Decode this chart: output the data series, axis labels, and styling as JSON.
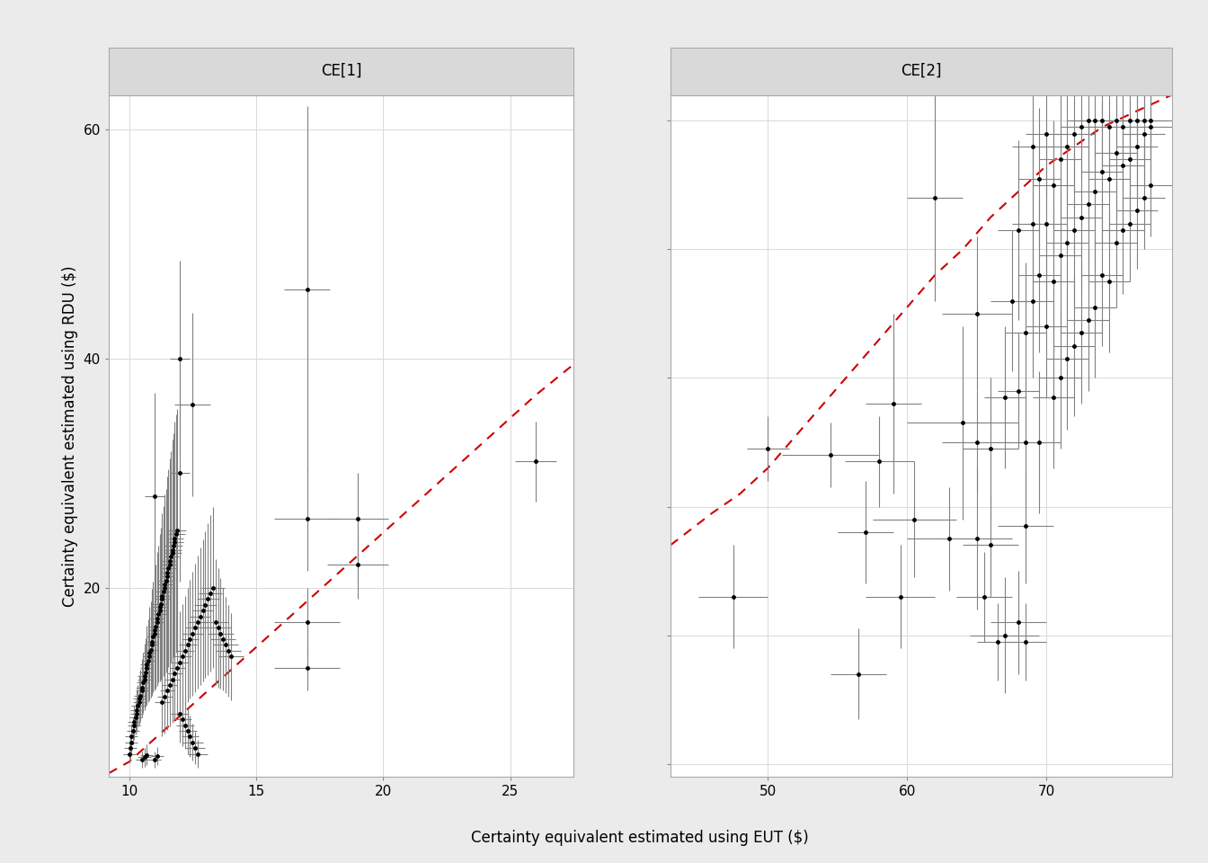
{
  "panel1_title": "CE[1]",
  "panel2_title": "CE[2]",
  "xlabel": "Certainty equivalent estimated using EUT ($)",
  "ylabel": "Certainty equivalent estimated using RDU ($)",
  "bg_color": "#ebebeb",
  "plot_bg_color": "#ffffff",
  "grid_color": "#d9d9d9",
  "strip_color": "#d9d9d9",
  "dot_color": "#000000",
  "errorbar_color": "#808080",
  "line_color": "#cc0000",
  "panel1_xlim": [
    9.2,
    27.5
  ],
  "panel1_ylim": [
    3.5,
    63
  ],
  "panel2_xlim": [
    43,
    79
  ],
  "panel2_ylim": [
    29,
    82
  ],
  "panel1_xticks": [
    10,
    15,
    20,
    25
  ],
  "panel1_yticks": [
    20,
    40,
    60
  ],
  "panel2_xticks": [
    50,
    60,
    70
  ],
  "panel2_yticks": [
    30,
    40,
    50,
    60,
    70,
    80
  ],
  "panel1_points": [
    [
      10.0,
      5.5,
      0.25,
      0.8
    ],
    [
      10.05,
      6.0,
      0.25,
      0.9
    ],
    [
      10.1,
      6.5,
      0.25,
      1.0
    ],
    [
      10.1,
      7.0,
      0.25,
      1.1
    ],
    [
      10.15,
      7.5,
      0.25,
      1.2
    ],
    [
      10.2,
      8.0,
      0.25,
      1.3
    ],
    [
      10.2,
      8.3,
      0.25,
      1.4
    ],
    [
      10.25,
      8.7,
      0.25,
      1.5
    ],
    [
      10.3,
      9.0,
      0.25,
      1.6
    ],
    [
      10.3,
      9.3,
      0.25,
      1.7
    ],
    [
      10.35,
      9.7,
      0.25,
      1.8
    ],
    [
      10.4,
      10.0,
      0.25,
      2.0
    ],
    [
      10.4,
      10.3,
      0.25,
      2.1
    ],
    [
      10.45,
      10.6,
      0.25,
      2.2
    ],
    [
      10.5,
      11.0,
      0.25,
      2.3
    ],
    [
      10.5,
      11.3,
      0.25,
      2.5
    ],
    [
      10.55,
      11.7,
      0.25,
      2.6
    ],
    [
      10.6,
      12.0,
      0.25,
      2.7
    ],
    [
      10.6,
      12.3,
      0.25,
      2.8
    ],
    [
      10.65,
      12.6,
      0.25,
      3.0
    ],
    [
      10.7,
      13.0,
      0.25,
      3.2
    ],
    [
      10.7,
      13.3,
      0.25,
      3.4
    ],
    [
      10.75,
      13.6,
      0.25,
      3.6
    ],
    [
      10.8,
      14.0,
      0.25,
      3.8
    ],
    [
      10.8,
      14.3,
      0.25,
      4.0
    ],
    [
      10.85,
      14.6,
      0.25,
      4.2
    ],
    [
      10.9,
      15.0,
      0.25,
      4.4
    ],
    [
      10.9,
      15.3,
      0.25,
      4.6
    ],
    [
      10.95,
      15.7,
      0.25,
      4.8
    ],
    [
      11.0,
      16.0,
      0.25,
      5.0
    ],
    [
      11.0,
      16.3,
      0.25,
      5.2
    ],
    [
      11.05,
      16.6,
      0.25,
      5.4
    ],
    [
      11.1,
      17.0,
      0.25,
      5.6
    ],
    [
      11.1,
      17.3,
      0.3,
      5.8
    ],
    [
      11.15,
      17.7,
      0.3,
      6.0
    ],
    [
      11.2,
      18.0,
      0.3,
      6.2
    ],
    [
      11.2,
      18.3,
      0.3,
      6.4
    ],
    [
      11.25,
      18.6,
      0.3,
      6.6
    ],
    [
      11.3,
      19.0,
      0.3,
      7.0
    ],
    [
      11.3,
      19.3,
      0.3,
      7.2
    ],
    [
      11.35,
      19.7,
      0.3,
      7.4
    ],
    [
      11.4,
      20.0,
      0.3,
      7.6
    ],
    [
      11.4,
      20.3,
      0.3,
      7.8
    ],
    [
      11.45,
      20.6,
      0.3,
      8.0
    ],
    [
      11.5,
      21.0,
      0.3,
      8.2
    ],
    [
      11.5,
      21.3,
      0.3,
      8.4
    ],
    [
      11.55,
      21.7,
      0.3,
      8.6
    ],
    [
      11.6,
      22.0,
      0.3,
      8.8
    ],
    [
      11.6,
      22.3,
      0.3,
      9.0
    ],
    [
      11.65,
      22.7,
      0.3,
      9.2
    ],
    [
      11.7,
      23.0,
      0.35,
      9.4
    ],
    [
      11.7,
      23.3,
      0.35,
      9.6
    ],
    [
      11.75,
      23.7,
      0.35,
      9.8
    ],
    [
      11.8,
      24.0,
      0.35,
      10.0
    ],
    [
      11.8,
      24.3,
      0.35,
      10.2
    ],
    [
      11.85,
      24.7,
      0.35,
      10.4
    ],
    [
      11.9,
      25.0,
      0.35,
      10.6
    ],
    [
      11.3,
      10.0,
      0.3,
      3.0
    ],
    [
      11.4,
      10.5,
      0.3,
      3.2
    ],
    [
      11.5,
      11.0,
      0.3,
      3.4
    ],
    [
      11.6,
      11.5,
      0.3,
      3.6
    ],
    [
      11.7,
      12.0,
      0.3,
      3.8
    ],
    [
      11.8,
      12.5,
      0.3,
      4.0
    ],
    [
      11.9,
      13.0,
      0.3,
      4.2
    ],
    [
      12.0,
      13.5,
      0.35,
      4.4
    ],
    [
      12.1,
      14.0,
      0.35,
      4.6
    ],
    [
      12.2,
      14.5,
      0.35,
      4.8
    ],
    [
      12.3,
      15.0,
      0.35,
      5.0
    ],
    [
      12.4,
      15.5,
      0.35,
      5.2
    ],
    [
      12.5,
      16.0,
      0.4,
      5.4
    ],
    [
      12.6,
      16.5,
      0.4,
      5.6
    ],
    [
      12.7,
      17.0,
      0.4,
      5.8
    ],
    [
      12.8,
      17.5,
      0.4,
      6.0
    ],
    [
      12.9,
      18.0,
      0.4,
      6.2
    ],
    [
      13.0,
      18.5,
      0.45,
      6.4
    ],
    [
      13.1,
      19.0,
      0.45,
      6.6
    ],
    [
      13.2,
      19.5,
      0.45,
      6.8
    ],
    [
      13.3,
      20.0,
      0.45,
      7.0
    ],
    [
      13.4,
      17.0,
      0.5,
      5.5
    ],
    [
      13.5,
      16.5,
      0.5,
      5.2
    ],
    [
      13.6,
      16.0,
      0.5,
      4.8
    ],
    [
      13.7,
      15.5,
      0.5,
      4.5
    ],
    [
      13.8,
      15.0,
      0.5,
      4.2
    ],
    [
      13.9,
      14.5,
      0.5,
      4.0
    ],
    [
      14.0,
      14.0,
      0.5,
      3.8
    ],
    [
      12.0,
      9.0,
      0.35,
      2.5
    ],
    [
      12.1,
      8.5,
      0.35,
      2.3
    ],
    [
      12.2,
      8.0,
      0.35,
      2.1
    ],
    [
      12.3,
      7.5,
      0.35,
      2.0
    ],
    [
      12.4,
      7.0,
      0.35,
      1.8
    ],
    [
      12.5,
      6.5,
      0.4,
      1.6
    ],
    [
      12.6,
      6.0,
      0.4,
      1.4
    ],
    [
      12.7,
      5.5,
      0.4,
      1.2
    ],
    [
      10.5,
      5.0,
      0.25,
      0.7
    ],
    [
      10.6,
      5.2,
      0.25,
      0.8
    ],
    [
      10.7,
      5.4,
      0.25,
      0.9
    ],
    [
      11.0,
      5.0,
      0.25,
      0.7
    ],
    [
      11.1,
      5.3,
      0.25,
      0.8
    ],
    [
      11.0,
      28.0,
      0.4,
      9.0
    ],
    [
      12.0,
      30.0,
      0.4,
      9.5
    ],
    [
      12.5,
      36.0,
      0.7,
      8.0
    ],
    [
      12.0,
      40.0,
      0.4,
      8.5
    ],
    [
      17.0,
      46.0,
      0.9,
      16.0
    ],
    [
      17.0,
      26.0,
      1.3,
      4.5
    ],
    [
      19.0,
      26.0,
      1.2,
      4.0
    ],
    [
      19.0,
      22.0,
      1.2,
      3.0
    ],
    [
      17.0,
      17.0,
      1.3,
      3.0
    ],
    [
      17.0,
      13.0,
      1.3,
      2.0
    ],
    [
      26.0,
      31.0,
      0.8,
      3.5
    ]
  ],
  "panel2_points": [
    [
      47.5,
      43.0,
      2.5,
      4.0
    ],
    [
      50.0,
      54.5,
      1.5,
      2.5
    ],
    [
      54.5,
      54.0,
      3.5,
      2.5
    ],
    [
      56.5,
      37.0,
      2.0,
      3.5
    ],
    [
      57.0,
      48.0,
      2.0,
      4.0
    ],
    [
      58.0,
      53.5,
      2.5,
      3.5
    ],
    [
      59.0,
      58.0,
      2.0,
      7.0
    ],
    [
      59.5,
      43.0,
      2.5,
      4.0
    ],
    [
      60.5,
      49.0,
      3.0,
      4.5
    ],
    [
      62.0,
      74.0,
      2.0,
      8.0
    ],
    [
      63.0,
      47.5,
      3.0,
      4.0
    ],
    [
      64.0,
      56.5,
      4.0,
      7.5
    ],
    [
      65.0,
      55.0,
      2.5,
      4.0
    ],
    [
      65.0,
      65.0,
      2.5,
      6.0
    ],
    [
      65.0,
      47.5,
      2.5,
      5.5
    ],
    [
      65.5,
      43.0,
      2.0,
      3.5
    ],
    [
      66.0,
      54.5,
      2.0,
      5.5
    ],
    [
      66.0,
      47.0,
      2.0,
      4.0
    ],
    [
      67.0,
      58.5,
      1.5,
      5.5
    ],
    [
      67.0,
      40.0,
      2.5,
      4.5
    ],
    [
      67.5,
      66.0,
      1.5,
      5.5
    ],
    [
      68.0,
      41.0,
      2.0,
      4.0
    ],
    [
      68.0,
      59.0,
      1.5,
      4.5
    ],
    [
      68.0,
      71.5,
      1.5,
      7.0
    ],
    [
      68.5,
      63.5,
      1.5,
      5.5
    ],
    [
      68.5,
      55.0,
      1.5,
      5.0
    ],
    [
      68.5,
      48.5,
      2.0,
      4.5
    ],
    [
      69.0,
      66.0,
      1.5,
      6.0
    ],
    [
      69.0,
      72.0,
      1.5,
      6.5
    ],
    [
      69.0,
      78.0,
      1.5,
      5.5
    ],
    [
      69.5,
      55.0,
      1.5,
      5.5
    ],
    [
      69.5,
      68.0,
      1.5,
      6.0
    ],
    [
      69.5,
      75.5,
      1.5,
      5.5
    ],
    [
      70.0,
      64.0,
      1.5,
      5.5
    ],
    [
      70.0,
      72.0,
      1.5,
      6.0
    ],
    [
      70.0,
      79.0,
      1.5,
      5.0
    ],
    [
      70.5,
      58.5,
      1.5,
      5.5
    ],
    [
      70.5,
      67.5,
      1.5,
      6.0
    ],
    [
      70.5,
      75.0,
      1.5,
      5.0
    ],
    [
      71.0,
      60.0,
      1.5,
      5.5
    ],
    [
      71.0,
      69.5,
      1.5,
      6.0
    ],
    [
      71.0,
      77.0,
      1.5,
      5.0
    ],
    [
      71.5,
      61.5,
      1.5,
      5.5
    ],
    [
      71.5,
      70.5,
      1.5,
      6.0
    ],
    [
      71.5,
      78.0,
      1.5,
      4.5
    ],
    [
      72.0,
      62.5,
      1.5,
      5.5
    ],
    [
      72.0,
      71.5,
      1.5,
      6.0
    ],
    [
      72.0,
      79.0,
      1.5,
      4.5
    ],
    [
      72.5,
      63.5,
      1.5,
      5.5
    ],
    [
      72.5,
      72.5,
      1.5,
      6.0
    ],
    [
      72.5,
      79.5,
      1.5,
      4.0
    ],
    [
      73.0,
      64.5,
      1.5,
      5.5
    ],
    [
      73.0,
      73.5,
      1.5,
      6.0
    ],
    [
      73.0,
      80.0,
      1.5,
      4.0
    ],
    [
      73.5,
      65.5,
      1.5,
      5.5
    ],
    [
      73.5,
      74.5,
      1.5,
      6.0
    ],
    [
      73.5,
      80.0,
      1.5,
      3.5
    ],
    [
      74.0,
      68.0,
      1.5,
      5.5
    ],
    [
      74.0,
      76.0,
      1.5,
      5.5
    ],
    [
      74.0,
      80.0,
      1.5,
      3.5
    ],
    [
      74.5,
      67.5,
      1.5,
      5.5
    ],
    [
      74.5,
      75.5,
      1.5,
      5.0
    ],
    [
      74.5,
      79.5,
      1.5,
      3.5
    ],
    [
      75.0,
      70.5,
      1.5,
      5.0
    ],
    [
      75.0,
      77.5,
      1.5,
      5.0
    ],
    [
      75.0,
      80.0,
      1.5,
      3.0
    ],
    [
      75.5,
      71.5,
      1.5,
      5.0
    ],
    [
      75.5,
      76.5,
      1.5,
      4.5
    ],
    [
      75.5,
      79.5,
      1.5,
      3.0
    ],
    [
      76.0,
      72.0,
      1.5,
      4.5
    ],
    [
      76.0,
      77.0,
      1.5,
      4.5
    ],
    [
      76.0,
      80.0,
      1.5,
      3.0
    ],
    [
      76.5,
      73.0,
      1.5,
      4.5
    ],
    [
      76.5,
      78.0,
      1.5,
      4.0
    ],
    [
      76.5,
      80.0,
      1.5,
      3.0
    ],
    [
      77.0,
      74.0,
      1.5,
      4.0
    ],
    [
      77.0,
      79.0,
      1.5,
      4.0
    ],
    [
      77.0,
      80.0,
      1.5,
      3.0
    ],
    [
      77.5,
      75.0,
      1.5,
      4.0
    ],
    [
      77.5,
      79.5,
      1.5,
      3.5
    ],
    [
      77.5,
      80.0,
      1.5,
      2.5
    ],
    [
      66.5,
      39.5,
      1.5,
      3.0
    ],
    [
      68.5,
      39.5,
      1.5,
      3.0
    ]
  ],
  "panel1_line_x": [
    9.2,
    10.0,
    11.0,
    12.0,
    13.0,
    14.0,
    15.0,
    16.0,
    17.0,
    18.0,
    19.0,
    20.0,
    21.0,
    22.0,
    23.0,
    24.0,
    25.0,
    26.0,
    27.5
  ],
  "panel1_line_y": [
    3.8,
    4.8,
    6.8,
    8.8,
    10.8,
    12.8,
    14.8,
    16.8,
    18.8,
    20.8,
    22.8,
    24.8,
    26.8,
    28.8,
    30.8,
    32.8,
    34.8,
    36.8,
    39.5
  ],
  "panel2_line_x": [
    43,
    46,
    48,
    50,
    52,
    54,
    56,
    58,
    60,
    62,
    64,
    66,
    68,
    70,
    72,
    74,
    76,
    78,
    79
  ],
  "panel2_line_y": [
    47.0,
    49.5,
    51.0,
    53.0,
    55.5,
    58.0,
    60.5,
    63.0,
    65.5,
    68.0,
    70.0,
    72.5,
    74.5,
    76.5,
    78.0,
    79.5,
    80.5,
    81.5,
    82.0
  ]
}
